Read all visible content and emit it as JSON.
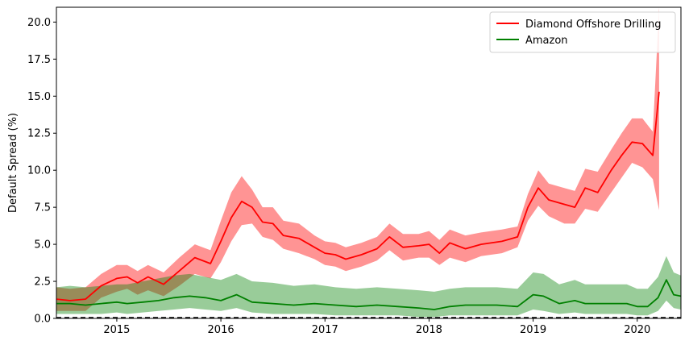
{
  "chart_data": {
    "type": "line",
    "title": "",
    "xlabel": "",
    "ylabel": "Default Spread (%)",
    "xlim": [
      2014.42,
      2020.42
    ],
    "ylim": [
      0,
      21
    ],
    "x_ticks": [
      2015,
      2016,
      2017,
      2018,
      2019,
      2020
    ],
    "y_ticks": [
      0.0,
      2.5,
      5.0,
      7.5,
      10.0,
      12.5,
      15.0,
      17.5,
      20.0
    ],
    "x_tick_labels": [
      "2015",
      "2016",
      "2017",
      "2018",
      "2019",
      "2020"
    ],
    "y_tick_labels": [
      "0.0",
      "2.5",
      "5.0",
      "7.5",
      "10.0",
      "12.5",
      "15.0",
      "17.5",
      "20.0"
    ],
    "legend_position": "top-right",
    "reference_line": {
      "y": 0,
      "style": "dashed",
      "color": "#000000"
    },
    "series": [
      {
        "name": "Diamond Offshore Drilling",
        "color": "#ff0000",
        "band_color": "#ff0000",
        "band_opacity": 0.42,
        "x": [
          2014.42,
          2014.55,
          2014.7,
          2014.85,
          2015.0,
          2015.1,
          2015.2,
          2015.3,
          2015.45,
          2015.6,
          2015.75,
          2015.9,
          2016.0,
          2016.1,
          2016.2,
          2016.3,
          2016.4,
          2016.5,
          2016.6,
          2016.75,
          2016.9,
          2017.0,
          2017.1,
          2017.2,
          2017.35,
          2017.5,
          2017.62,
          2017.75,
          2017.9,
          2018.0,
          2018.1,
          2018.2,
          2018.35,
          2018.5,
          2018.7,
          2018.85,
          2018.95,
          2019.05,
          2019.15,
          2019.3,
          2019.4,
          2019.5,
          2019.62,
          2019.75,
          2019.85,
          2019.95,
          2020.05,
          2020.15,
          2020.21
        ],
        "values": [
          1.3,
          1.2,
          1.3,
          2.2,
          2.7,
          2.8,
          2.4,
          2.8,
          2.3,
          3.2,
          4.1,
          3.7,
          5.2,
          6.8,
          7.9,
          7.5,
          6.5,
          6.4,
          5.6,
          5.4,
          4.8,
          4.4,
          4.3,
          4.0,
          4.3,
          4.7,
          5.5,
          4.8,
          4.9,
          5.0,
          4.4,
          5.1,
          4.7,
          5.0,
          5.2,
          5.5,
          7.5,
          8.8,
          8.0,
          7.7,
          7.5,
          8.8,
          8.5,
          10.0,
          11.0,
          11.9,
          11.8,
          11.0,
          15.3
        ],
        "lower": [
          0.5,
          0.5,
          0.5,
          1.4,
          1.8,
          2.0,
          1.6,
          1.9,
          1.5,
          2.2,
          3.0,
          2.7,
          3.8,
          5.2,
          6.3,
          6.4,
          5.5,
          5.3,
          4.7,
          4.4,
          4.0,
          3.6,
          3.5,
          3.2,
          3.5,
          3.9,
          4.6,
          3.9,
          4.1,
          4.1,
          3.6,
          4.1,
          3.8,
          4.2,
          4.4,
          4.8,
          6.6,
          7.6,
          6.9,
          6.4,
          6.4,
          7.4,
          7.2,
          8.5,
          9.5,
          10.5,
          10.2,
          9.4,
          7.3
        ],
        "upper": [
          2.1,
          2.0,
          2.1,
          3.0,
          3.6,
          3.6,
          3.2,
          3.6,
          3.1,
          4.1,
          5.0,
          4.6,
          6.6,
          8.5,
          9.6,
          8.7,
          7.5,
          7.5,
          6.6,
          6.4,
          5.6,
          5.2,
          5.1,
          4.8,
          5.1,
          5.5,
          6.4,
          5.7,
          5.7,
          5.9,
          5.3,
          6.0,
          5.6,
          5.8,
          6.0,
          6.2,
          8.4,
          10.0,
          9.1,
          8.8,
          8.6,
          10.1,
          9.9,
          11.4,
          12.5,
          13.5,
          13.5,
          12.6,
          21.0
        ]
      },
      {
        "name": "Amazon",
        "color": "#008000",
        "band_color": "#008000",
        "band_opacity": 0.4,
        "x": [
          2014.42,
          2014.55,
          2014.7,
          2014.85,
          2015.0,
          2015.1,
          2015.25,
          2015.4,
          2015.55,
          2015.7,
          2015.85,
          2016.0,
          2016.15,
          2016.3,
          2016.5,
          2016.7,
          2016.9,
          2017.1,
          2017.3,
          2017.5,
          2017.7,
          2017.9,
          2018.05,
          2018.2,
          2018.35,
          2018.5,
          2018.65,
          2018.85,
          2019.0,
          2019.1,
          2019.25,
          2019.4,
          2019.5,
          2019.7,
          2019.9,
          2020.0,
          2020.1,
          2020.2,
          2020.28,
          2020.35,
          2020.42
        ],
        "values": [
          1.0,
          1.0,
          0.9,
          1.0,
          1.1,
          1.0,
          1.1,
          1.2,
          1.4,
          1.5,
          1.4,
          1.2,
          1.6,
          1.1,
          1.0,
          0.9,
          1.0,
          0.9,
          0.8,
          0.9,
          0.8,
          0.7,
          0.6,
          0.8,
          0.9,
          0.9,
          0.9,
          0.8,
          1.6,
          1.5,
          1.0,
          1.2,
          1.0,
          1.0,
          1.0,
          0.8,
          0.8,
          1.4,
          2.6,
          1.6,
          1.5
        ],
        "lower": [
          0.3,
          0.3,
          0.3,
          0.3,
          0.4,
          0.3,
          0.4,
          0.5,
          0.6,
          0.7,
          0.6,
          0.5,
          0.7,
          0.4,
          0.3,
          0.3,
          0.3,
          0.2,
          0.2,
          0.2,
          0.2,
          0.1,
          0.1,
          0.2,
          0.2,
          0.2,
          0.2,
          0.2,
          0.6,
          0.5,
          0.3,
          0.4,
          0.3,
          0.3,
          0.3,
          0.2,
          0.2,
          0.5,
          1.2,
          0.7,
          0.6
        ],
        "upper": [
          2.1,
          2.2,
          2.1,
          2.2,
          2.3,
          2.3,
          2.5,
          2.7,
          2.9,
          3.0,
          2.8,
          2.6,
          3.0,
          2.5,
          2.4,
          2.2,
          2.3,
          2.1,
          2.0,
          2.1,
          2.0,
          1.9,
          1.8,
          2.0,
          2.1,
          2.1,
          2.1,
          2.0,
          3.1,
          3.0,
          2.3,
          2.6,
          2.3,
          2.3,
          2.3,
          2.0,
          2.0,
          2.8,
          4.2,
          3.1,
          2.9
        ]
      }
    ]
  }
}
